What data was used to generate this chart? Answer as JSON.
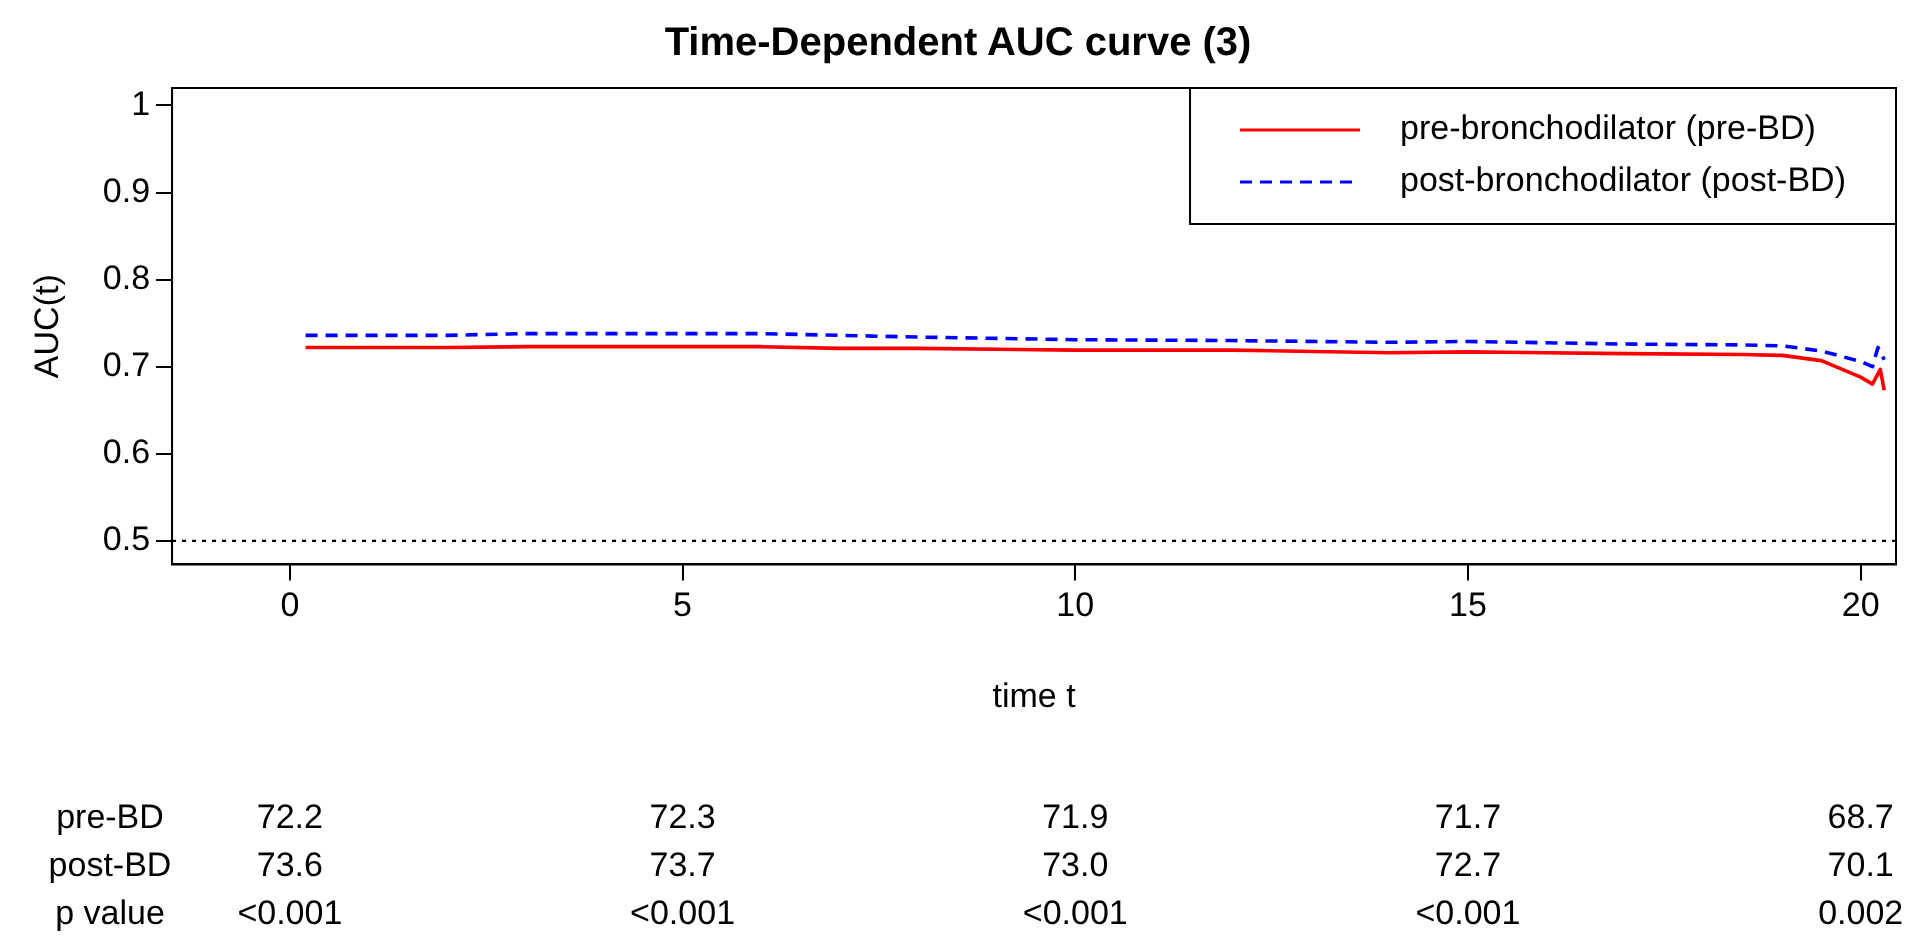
{
  "chart_data": {
    "type": "line",
    "title": "Time-Dependent AUC curve (3)",
    "xlabel": "time t",
    "ylabel": "AUC(t)",
    "xlim": [
      -1.5,
      20.45
    ],
    "xticks": [
      0,
      5,
      10,
      15,
      20
    ],
    "ylim": [
      0.473,
      1.02
    ],
    "yticks": [
      0.5,
      0.6,
      0.7,
      0.8,
      0.9,
      1.0
    ],
    "grid": false,
    "legend": "top right",
    "marker": "none",
    "series": [
      {
        "name": "pre-bronchodilator (pre-BD)",
        "color": "#ff0000",
        "line_style": "solid",
        "x": [
          0.2,
          2,
          3,
          5,
          6,
          7,
          8,
          10,
          12,
          14,
          15,
          17,
          18.5,
          19,
          19.5,
          20.0,
          20.15,
          20.25,
          20.3
        ],
        "values": [
          0.722,
          0.722,
          0.723,
          0.723,
          0.723,
          0.721,
          0.721,
          0.719,
          0.719,
          0.716,
          0.717,
          0.715,
          0.714,
          0.713,
          0.707,
          0.688,
          0.68,
          0.697,
          0.673
        ]
      },
      {
        "name": "post-bronchodilator (post-BD)",
        "color": "#0000ff",
        "line_style": "dashed",
        "x": [
          0.2,
          2,
          3,
          5,
          6,
          8,
          10,
          12,
          14,
          15,
          17,
          18.5,
          19,
          19.5,
          20.0,
          20.15,
          20.22,
          20.3
        ],
        "values": [
          0.736,
          0.736,
          0.738,
          0.738,
          0.738,
          0.734,
          0.731,
          0.73,
          0.728,
          0.729,
          0.726,
          0.725,
          0.724,
          0.718,
          0.706,
          0.7,
          0.722,
          0.708
        ]
      }
    ],
    "ref_lines": [
      {
        "axis": "y",
        "value": 0.5,
        "color": "#000000",
        "line_style": "dotted"
      }
    ],
    "annotations": [
      "pre-BD",
      "72.2",
      "72.3",
      "71.9",
      "71.7",
      "68.7",
      "post-BD",
      "73.6",
      "73.7",
      "73.0",
      "72.7",
      "70.1",
      "p value",
      "<0.001",
      "<0.001",
      "<0.001",
      "<0.001",
      "0.002"
    ]
  }
}
